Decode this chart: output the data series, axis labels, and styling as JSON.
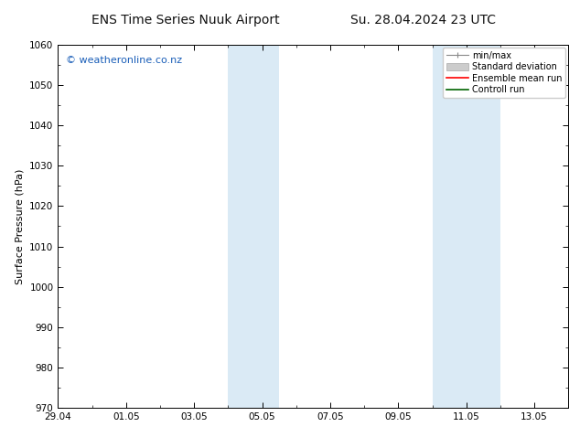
{
  "title_left": "ENS Time Series Nuuk Airport",
  "title_right": "Su. 28.04.2024 23 UTC",
  "ylabel": "Surface Pressure (hPa)",
  "ylim": [
    970,
    1060
  ],
  "yticks": [
    970,
    980,
    990,
    1000,
    1010,
    1020,
    1030,
    1040,
    1050,
    1060
  ],
  "xtick_labels": [
    "29.04",
    "01.05",
    "03.05",
    "05.05",
    "07.05",
    "09.05",
    "11.05",
    "13.05"
  ],
  "xtick_positions": [
    0,
    2,
    4,
    6,
    8,
    10,
    12,
    14
  ],
  "xlim": [
    0,
    15
  ],
  "shaded_bands": [
    {
      "x_start": 5.0,
      "x_end": 6.5
    },
    {
      "x_start": 11.0,
      "x_end": 13.0
    }
  ],
  "shaded_color": "#daeaf5",
  "watermark_text": "© weatheronline.co.nz",
  "watermark_color": "#1a5eb8",
  "legend_items": [
    {
      "label": "min/max",
      "color": "#aaaaaa",
      "style": "errorbar"
    },
    {
      "label": "Standard deviation",
      "color": "#cccccc",
      "style": "fill"
    },
    {
      "label": "Ensemble mean run",
      "color": "red",
      "style": "line"
    },
    {
      "label": "Controll run",
      "color": "green",
      "style": "line"
    }
  ],
  "bg_color": "#ffffff",
  "spine_color": "#000000",
  "tick_color": "#000000",
  "font_size_title": 10,
  "font_size_labels": 8,
  "font_size_ticks": 7.5,
  "font_size_legend": 7,
  "font_size_watermark": 8
}
